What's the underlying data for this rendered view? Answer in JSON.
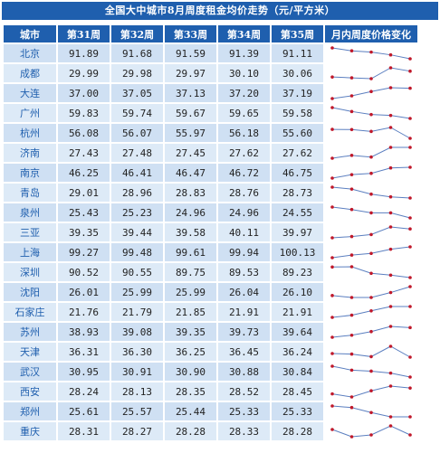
{
  "title": "全国大中城市8月周度租金均价走势（元/平方米）",
  "colors": {
    "header_bg": "#1f5fae",
    "row_a": "#cfe0f3",
    "row_b": "#ddeaf7",
    "spark_line": "#5b7fc0",
    "spark_marker": "#c0182a"
  },
  "chart_data": {
    "type": "table",
    "title": "全国大中城市8月周度租金均价走势（元/平方米）",
    "columns": [
      "城市",
      "第31周",
      "第32周",
      "第33周",
      "第34周",
      "第35周",
      "月内周度价格变化"
    ],
    "weeks": [
      "第31周",
      "第32周",
      "第33周",
      "第34周",
      "第35周"
    ],
    "rows": [
      {
        "city": "北京",
        "values": [
          "91.89",
          "91.68",
          "91.59",
          "91.39",
          "91.11"
        ]
      },
      {
        "city": "成都",
        "values": [
          "29.99",
          "29.98",
          "29.97",
          "30.10",
          "30.06"
        ]
      },
      {
        "city": "大连",
        "values": [
          "37.00",
          "37.05",
          "37.13",
          "37.20",
          "37.19"
        ]
      },
      {
        "city": "广州",
        "values": [
          "59.83",
          "59.74",
          "59.67",
          "59.65",
          "59.58"
        ]
      },
      {
        "city": "杭州",
        "values": [
          "56.08",
          "56.07",
          "55.97",
          "56.18",
          "55.60"
        ]
      },
      {
        "city": "济南",
        "values": [
          "27.43",
          "27.48",
          "27.45",
          "27.62",
          "27.62"
        ]
      },
      {
        "city": "南京",
        "values": [
          "46.25",
          "46.41",
          "46.47",
          "46.72",
          "46.75"
        ]
      },
      {
        "city": "青岛",
        "values": [
          "29.01",
          "28.96",
          "28.83",
          "28.76",
          "28.73"
        ]
      },
      {
        "city": "泉州",
        "values": [
          "25.43",
          "25.23",
          "24.96",
          "24.96",
          "24.55"
        ]
      },
      {
        "city": "三亚",
        "values": [
          "39.35",
          "39.44",
          "39.58",
          "40.11",
          "39.97"
        ]
      },
      {
        "city": "上海",
        "values": [
          "99.27",
          "99.48",
          "99.61",
          "99.94",
          "100.13"
        ]
      },
      {
        "city": "深圳",
        "values": [
          "90.52",
          "90.55",
          "89.75",
          "89.53",
          "89.23"
        ]
      },
      {
        "city": "沈阳",
        "values": [
          "26.01",
          "25.99",
          "25.99",
          "26.04",
          "26.10"
        ]
      },
      {
        "city": "石家庄",
        "values": [
          "21.76",
          "21.79",
          "21.85",
          "21.91",
          "21.91"
        ]
      },
      {
        "city": "苏州",
        "values": [
          "38.93",
          "39.08",
          "39.35",
          "39.73",
          "39.64"
        ]
      },
      {
        "city": "天津",
        "values": [
          "36.31",
          "36.30",
          "36.25",
          "36.45",
          "36.24"
        ]
      },
      {
        "city": "武汉",
        "values": [
          "30.95",
          "30.91",
          "30.90",
          "30.88",
          "30.84"
        ]
      },
      {
        "city": "西安",
        "values": [
          "28.24",
          "28.13",
          "28.35",
          "28.52",
          "28.45"
        ]
      },
      {
        "city": "郑州",
        "values": [
          "25.61",
          "25.57",
          "25.44",
          "25.33",
          "25.33"
        ]
      },
      {
        "city": "重庆",
        "values": [
          "28.31",
          "28.27",
          "28.28",
          "28.33",
          "28.28"
        ]
      }
    ]
  }
}
